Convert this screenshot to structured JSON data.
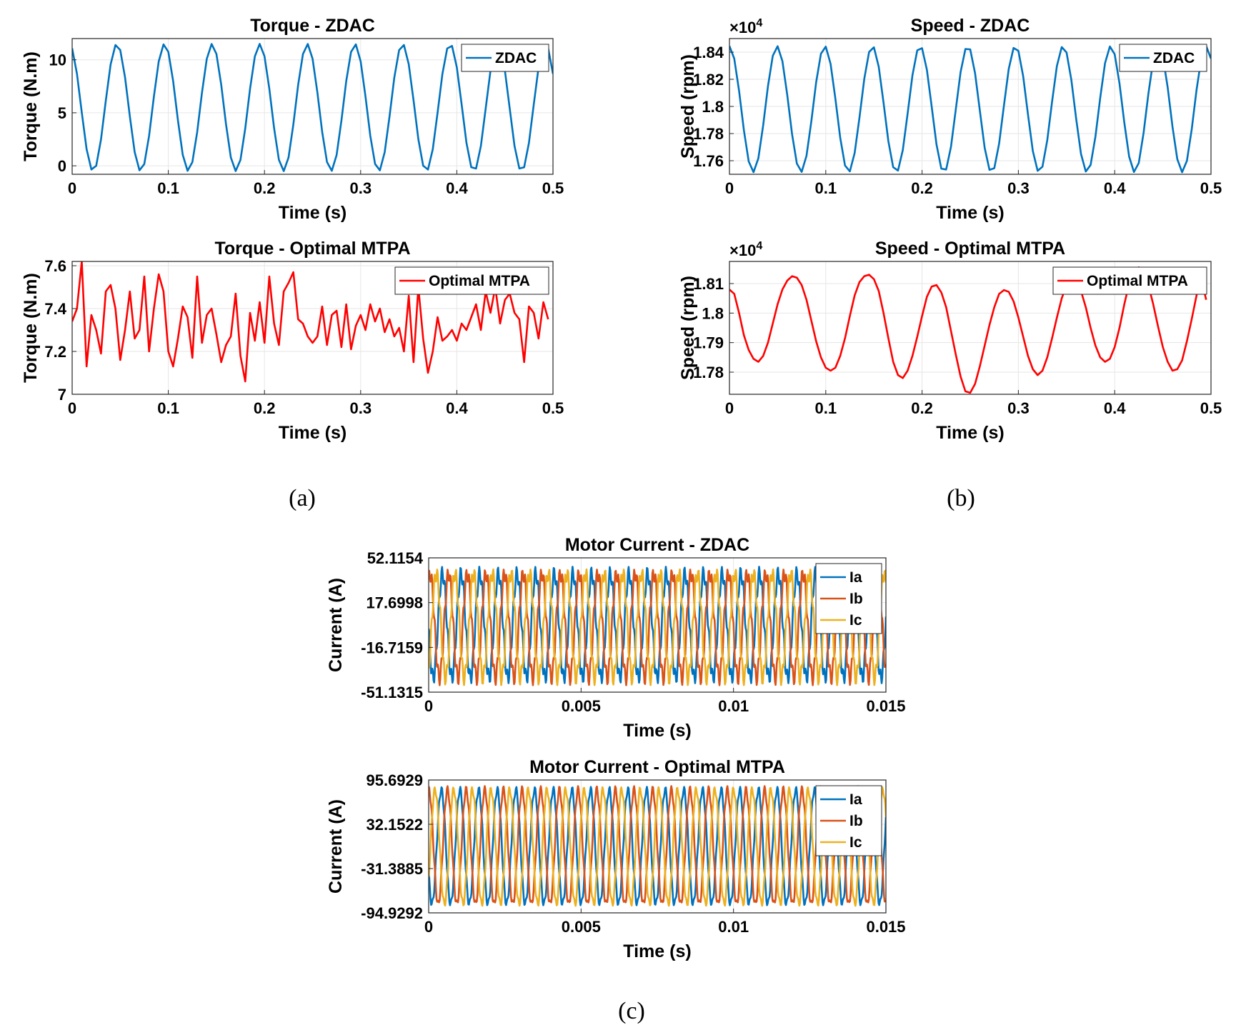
{
  "figure_labels": {
    "a": "(a)",
    "b": "(b)",
    "c": "(c)"
  },
  "colors": {
    "blue": "#0072BD",
    "orange": "#D95319",
    "yellow": "#EDB120",
    "red": "#FF0000",
    "grid": "#E6E6E6"
  },
  "chart_data": [
    {
      "id": "torque_zdac",
      "type": "line",
      "title": "Torque - ZDAC",
      "xlabel": "Time (s)",
      "ylabel": "Torque (N.m)",
      "xlim": [
        0,
        0.5
      ],
      "ylim": [
        -0.8,
        12
      ],
      "xticks": [
        0,
        0.1,
        0.2,
        0.3,
        0.4,
        0.5
      ],
      "xtick_labels": [
        "0",
        "0.1",
        "0.2",
        "0.3",
        "0.4",
        "0.5"
      ],
      "yticks": [
        0,
        5,
        10
      ],
      "ytick_labels": [
        "0",
        "5",
        "10"
      ],
      "legend": "top-right",
      "series": [
        {
          "name": "ZDAC",
          "color": "#0072BD",
          "kind": "sine",
          "mean": 5.5,
          "amp": 6.0,
          "period": 0.0495,
          "phase": 1.95,
          "step": 0.005
        }
      ]
    },
    {
      "id": "speed_zdac",
      "type": "line",
      "title": "Speed - ZDAC",
      "xlabel": "Time (s)",
      "ylabel": "Speed (rpm)",
      "exponent_label": "×10^4",
      "xlim": [
        0,
        0.5
      ],
      "ylim": [
        1.75,
        1.85
      ],
      "xticks": [
        0,
        0.1,
        0.2,
        0.3,
        0.4,
        0.5
      ],
      "xtick_labels": [
        "0",
        "0.1",
        "0.2",
        "0.3",
        "0.4",
        "0.5"
      ],
      "yticks": [
        1.76,
        1.78,
        1.8,
        1.82,
        1.84
      ],
      "ytick_labels": [
        "1.76",
        "1.78",
        "1.8",
        "1.82",
        "1.84"
      ],
      "legend": "top-right",
      "series": [
        {
          "name": "ZDAC",
          "color": "#0072BD",
          "kind": "sine",
          "mean": 1.798,
          "amp": 0.0465,
          "period": 0.0495,
          "phase": 1.58,
          "step": 0.005
        }
      ]
    },
    {
      "id": "torque_mtpa",
      "type": "line",
      "title": "Torque - Optimal MTPA",
      "xlabel": "Time (s)",
      "ylabel": "Torque (N.m)",
      "xlim": [
        0,
        0.5
      ],
      "ylim": [
        7,
        7.62
      ],
      "xticks": [
        0,
        0.1,
        0.2,
        0.3,
        0.4,
        0.5
      ],
      "xtick_labels": [
        "0",
        "0.1",
        "0.2",
        "0.3",
        "0.4",
        "0.5"
      ],
      "yticks": [
        7,
        7.2,
        7.4,
        7.6
      ],
      "ytick_labels": [
        "7",
        "7.2",
        "7.4",
        "7.6"
      ],
      "legend": "top-right",
      "series": [
        {
          "name": "Optimal MTPA",
          "color": "#FF0000",
          "kind": "points",
          "x": [
            0,
            0.005,
            0.01,
            0.015,
            0.02,
            0.025,
            0.03,
            0.035,
            0.04,
            0.045,
            0.05,
            0.055,
            0.06,
            0.065,
            0.07,
            0.075,
            0.08,
            0.085,
            0.09,
            0.095,
            0.1,
            0.105,
            0.11,
            0.115,
            0.12,
            0.125,
            0.13,
            0.135,
            0.14,
            0.145,
            0.15,
            0.155,
            0.16,
            0.165,
            0.17,
            0.175,
            0.18,
            0.185,
            0.19,
            0.195,
            0.2,
            0.205,
            0.21,
            0.215,
            0.22,
            0.225,
            0.23,
            0.235,
            0.24,
            0.245,
            0.25,
            0.255,
            0.26,
            0.265,
            0.27,
            0.275,
            0.28,
            0.285,
            0.29,
            0.295,
            0.3,
            0.305,
            0.31,
            0.315,
            0.32,
            0.325,
            0.33,
            0.335,
            0.34,
            0.345,
            0.35,
            0.355,
            0.36,
            0.365,
            0.37,
            0.375,
            0.38,
            0.385,
            0.39,
            0.395,
            0.4,
            0.405,
            0.41,
            0.415,
            0.42,
            0.425,
            0.43,
            0.435,
            0.44,
            0.445,
            0.45,
            0.455,
            0.46,
            0.465,
            0.47,
            0.475,
            0.48,
            0.485,
            0.49,
            0.495
          ],
          "y": [
            7.34,
            7.4,
            7.62,
            7.13,
            7.37,
            7.3,
            7.19,
            7.48,
            7.51,
            7.4,
            7.16,
            7.3,
            7.48,
            7.26,
            7.3,
            7.55,
            7.2,
            7.4,
            7.56,
            7.48,
            7.2,
            7.13,
            7.26,
            7.41,
            7.36,
            7.17,
            7.55,
            7.24,
            7.37,
            7.4,
            7.28,
            7.15,
            7.23,
            7.27,
            7.47,
            7.18,
            7.06,
            7.38,
            7.25,
            7.43,
            7.24,
            7.55,
            7.33,
            7.23,
            7.48,
            7.52,
            7.57,
            7.35,
            7.33,
            7.27,
            7.24,
            7.27,
            7.41,
            7.23,
            7.37,
            7.39,
            7.22,
            7.42,
            7.21,
            7.32,
            7.37,
            7.3,
            7.42,
            7.34,
            7.4,
            7.29,
            7.35,
            7.27,
            7.31,
            7.2,
            7.46,
            7.15,
            7.5,
            7.26,
            7.1,
            7.2,
            7.36,
            7.25,
            7.27,
            7.3,
            7.25,
            7.33,
            7.3,
            7.36,
            7.42,
            7.3,
            7.48,
            7.38,
            7.5,
            7.33,
            7.44,
            7.47,
            7.38,
            7.35,
            7.15,
            7.41,
            7.38,
            7.26,
            7.43,
            7.35
          ]
        }
      ]
    },
    {
      "id": "speed_mtpa",
      "type": "line",
      "title": "Speed - Optimal MTPA",
      "xlabel": "Time (s)",
      "ylabel": "Speed (rpm)",
      "exponent_label": "×10^4",
      "xlim": [
        0,
        0.5
      ],
      "ylim": [
        1.7725,
        1.8175
      ],
      "xticks": [
        0,
        0.1,
        0.2,
        0.3,
        0.4,
        0.5
      ],
      "xtick_labels": [
        "0",
        "0.1",
        "0.2",
        "0.3",
        "0.4",
        "0.5"
      ],
      "yticks": [
        1.78,
        1.79,
        1.8,
        1.81
      ],
      "ytick_labels": [
        "1.78",
        "1.79",
        "1.8",
        "1.81"
      ],
      "legend": "top-right",
      "series": [
        {
          "name": "Optimal MTPA",
          "color": "#FF0000",
          "kind": "points",
          "x": [
            0,
            0.005,
            0.01,
            0.015,
            0.02,
            0.025,
            0.03,
            0.035,
            0.04,
            0.045,
            0.05,
            0.055,
            0.06,
            0.065,
            0.07,
            0.075,
            0.08,
            0.085,
            0.09,
            0.095,
            0.1,
            0.105,
            0.11,
            0.115,
            0.12,
            0.125,
            0.13,
            0.135,
            0.14,
            0.145,
            0.15,
            0.155,
            0.16,
            0.165,
            0.17,
            0.175,
            0.18,
            0.185,
            0.19,
            0.195,
            0.2,
            0.205,
            0.21,
            0.215,
            0.22,
            0.225,
            0.23,
            0.235,
            0.24,
            0.245,
            0.25,
            0.255,
            0.26,
            0.265,
            0.27,
            0.275,
            0.28,
            0.285,
            0.29,
            0.295,
            0.3,
            0.305,
            0.31,
            0.315,
            0.32,
            0.325,
            0.33,
            0.335,
            0.34,
            0.345,
            0.35,
            0.355,
            0.36,
            0.365,
            0.37,
            0.375,
            0.38,
            0.385,
            0.39,
            0.395,
            0.4,
            0.405,
            0.41,
            0.415,
            0.42,
            0.425,
            0.43,
            0.435,
            0.44,
            0.445,
            0.45,
            0.455,
            0.46,
            0.465,
            0.47,
            0.475,
            0.48,
            0.485,
            0.49,
            0.495
          ],
          "y": [
            1.808,
            1.8065,
            1.8,
            1.7925,
            1.7875,
            1.7845,
            1.7835,
            1.7855,
            1.79,
            1.7965,
            1.803,
            1.808,
            1.811,
            1.8125,
            1.812,
            1.8095,
            1.8045,
            1.7975,
            1.7905,
            1.785,
            1.7815,
            1.7805,
            1.7815,
            1.7855,
            1.7915,
            1.799,
            1.806,
            1.8105,
            1.8125,
            1.813,
            1.8115,
            1.8075,
            1.8,
            1.7915,
            1.7835,
            1.779,
            1.778,
            1.7805,
            1.7855,
            1.792,
            1.799,
            1.8055,
            1.809,
            1.8095,
            1.807,
            1.802,
            1.794,
            1.786,
            1.7785,
            1.7735,
            1.773,
            1.776,
            1.782,
            1.789,
            1.796,
            1.802,
            1.8065,
            1.8078,
            1.8072,
            1.804,
            1.7985,
            1.792,
            1.7855,
            1.781,
            1.779,
            1.7805,
            1.785,
            1.7915,
            1.7985,
            1.805,
            1.8095,
            1.8115,
            1.811,
            1.8075,
            1.802,
            1.795,
            1.789,
            1.785,
            1.7835,
            1.7845,
            1.7885,
            1.795,
            1.803,
            1.81,
            1.8142,
            1.8155,
            1.8138,
            1.8095,
            1.803,
            1.7955,
            1.7885,
            1.7835,
            1.7805,
            1.781,
            1.784,
            1.7905,
            1.798,
            1.806,
            1.8115,
            1.8045
          ]
        }
      ]
    },
    {
      "id": "current_zdac",
      "type": "line",
      "title": "Motor Current - ZDAC",
      "xlabel": "Time (s)",
      "ylabel": "Current (A)",
      "xlim": [
        0,
        0.015
      ],
      "ylim": [
        -51.1315,
        52.1154
      ],
      "xticks": [
        0,
        0.005,
        0.01,
        0.015
      ],
      "xtick_labels": [
        "0",
        "0.005",
        "0.01",
        "0.015"
      ],
      "yticks": [
        -51.1315,
        -16.7159,
        17.6998,
        52.1154
      ],
      "ytick_labels": [
        "-51.1315",
        "-16.7159",
        "17.6998",
        "52.1154"
      ],
      "legend": "top-right",
      "series": [
        {
          "name": "Ia",
          "color": "#0072BD",
          "kind": "sine",
          "mean": 0,
          "amp": 40,
          "period": 0.000612,
          "phase": 3.2,
          "ripple": 6,
          "step": 2e-05
        },
        {
          "name": "Ib",
          "color": "#D95319",
          "kind": "sine",
          "mean": 0,
          "amp": 40,
          "period": 0.000612,
          "phase": 1.11,
          "ripple": 6,
          "step": 2e-05
        },
        {
          "name": "Ic",
          "color": "#EDB120",
          "kind": "sine",
          "mean": 0,
          "amp": 40,
          "period": 0.000612,
          "phase": 5.29,
          "ripple": 6,
          "step": 2e-05
        }
      ]
    },
    {
      "id": "current_mtpa",
      "type": "line",
      "title": "Motor Current - Optimal MTPA",
      "xlabel": "Time (s)",
      "ylabel": "Current (A)",
      "xlim": [
        0,
        0.015
      ],
      "ylim": [
        -94.9292,
        95.6929
      ],
      "xticks": [
        0,
        0.005,
        0.01,
        0.015
      ],
      "xtick_labels": [
        "0",
        "0.005",
        "0.01",
        "0.015"
      ],
      "yticks": [
        -94.9292,
        -31.3885,
        32.1522,
        95.6929
      ],
      "ytick_labels": [
        "-94.9292",
        "-31.3885",
        "32.1522",
        "95.6929"
      ],
      "legend": "top-right",
      "series": [
        {
          "name": "Ia",
          "color": "#0072BD",
          "kind": "sine",
          "mean": 0,
          "amp": 82,
          "period": 0.000612,
          "phase": 3.6,
          "ripple": 5,
          "step": 2e-05
        },
        {
          "name": "Ib",
          "color": "#D95319",
          "kind": "sine",
          "mean": 0,
          "amp": 82,
          "period": 0.000612,
          "phase": 1.51,
          "ripple": 5,
          "step": 2e-05
        },
        {
          "name": "Ic",
          "color": "#EDB120",
          "kind": "sine",
          "mean": 0,
          "amp": 82,
          "period": 0.000612,
          "phase": 5.69,
          "ripple": 5,
          "step": 2e-05
        }
      ]
    }
  ]
}
